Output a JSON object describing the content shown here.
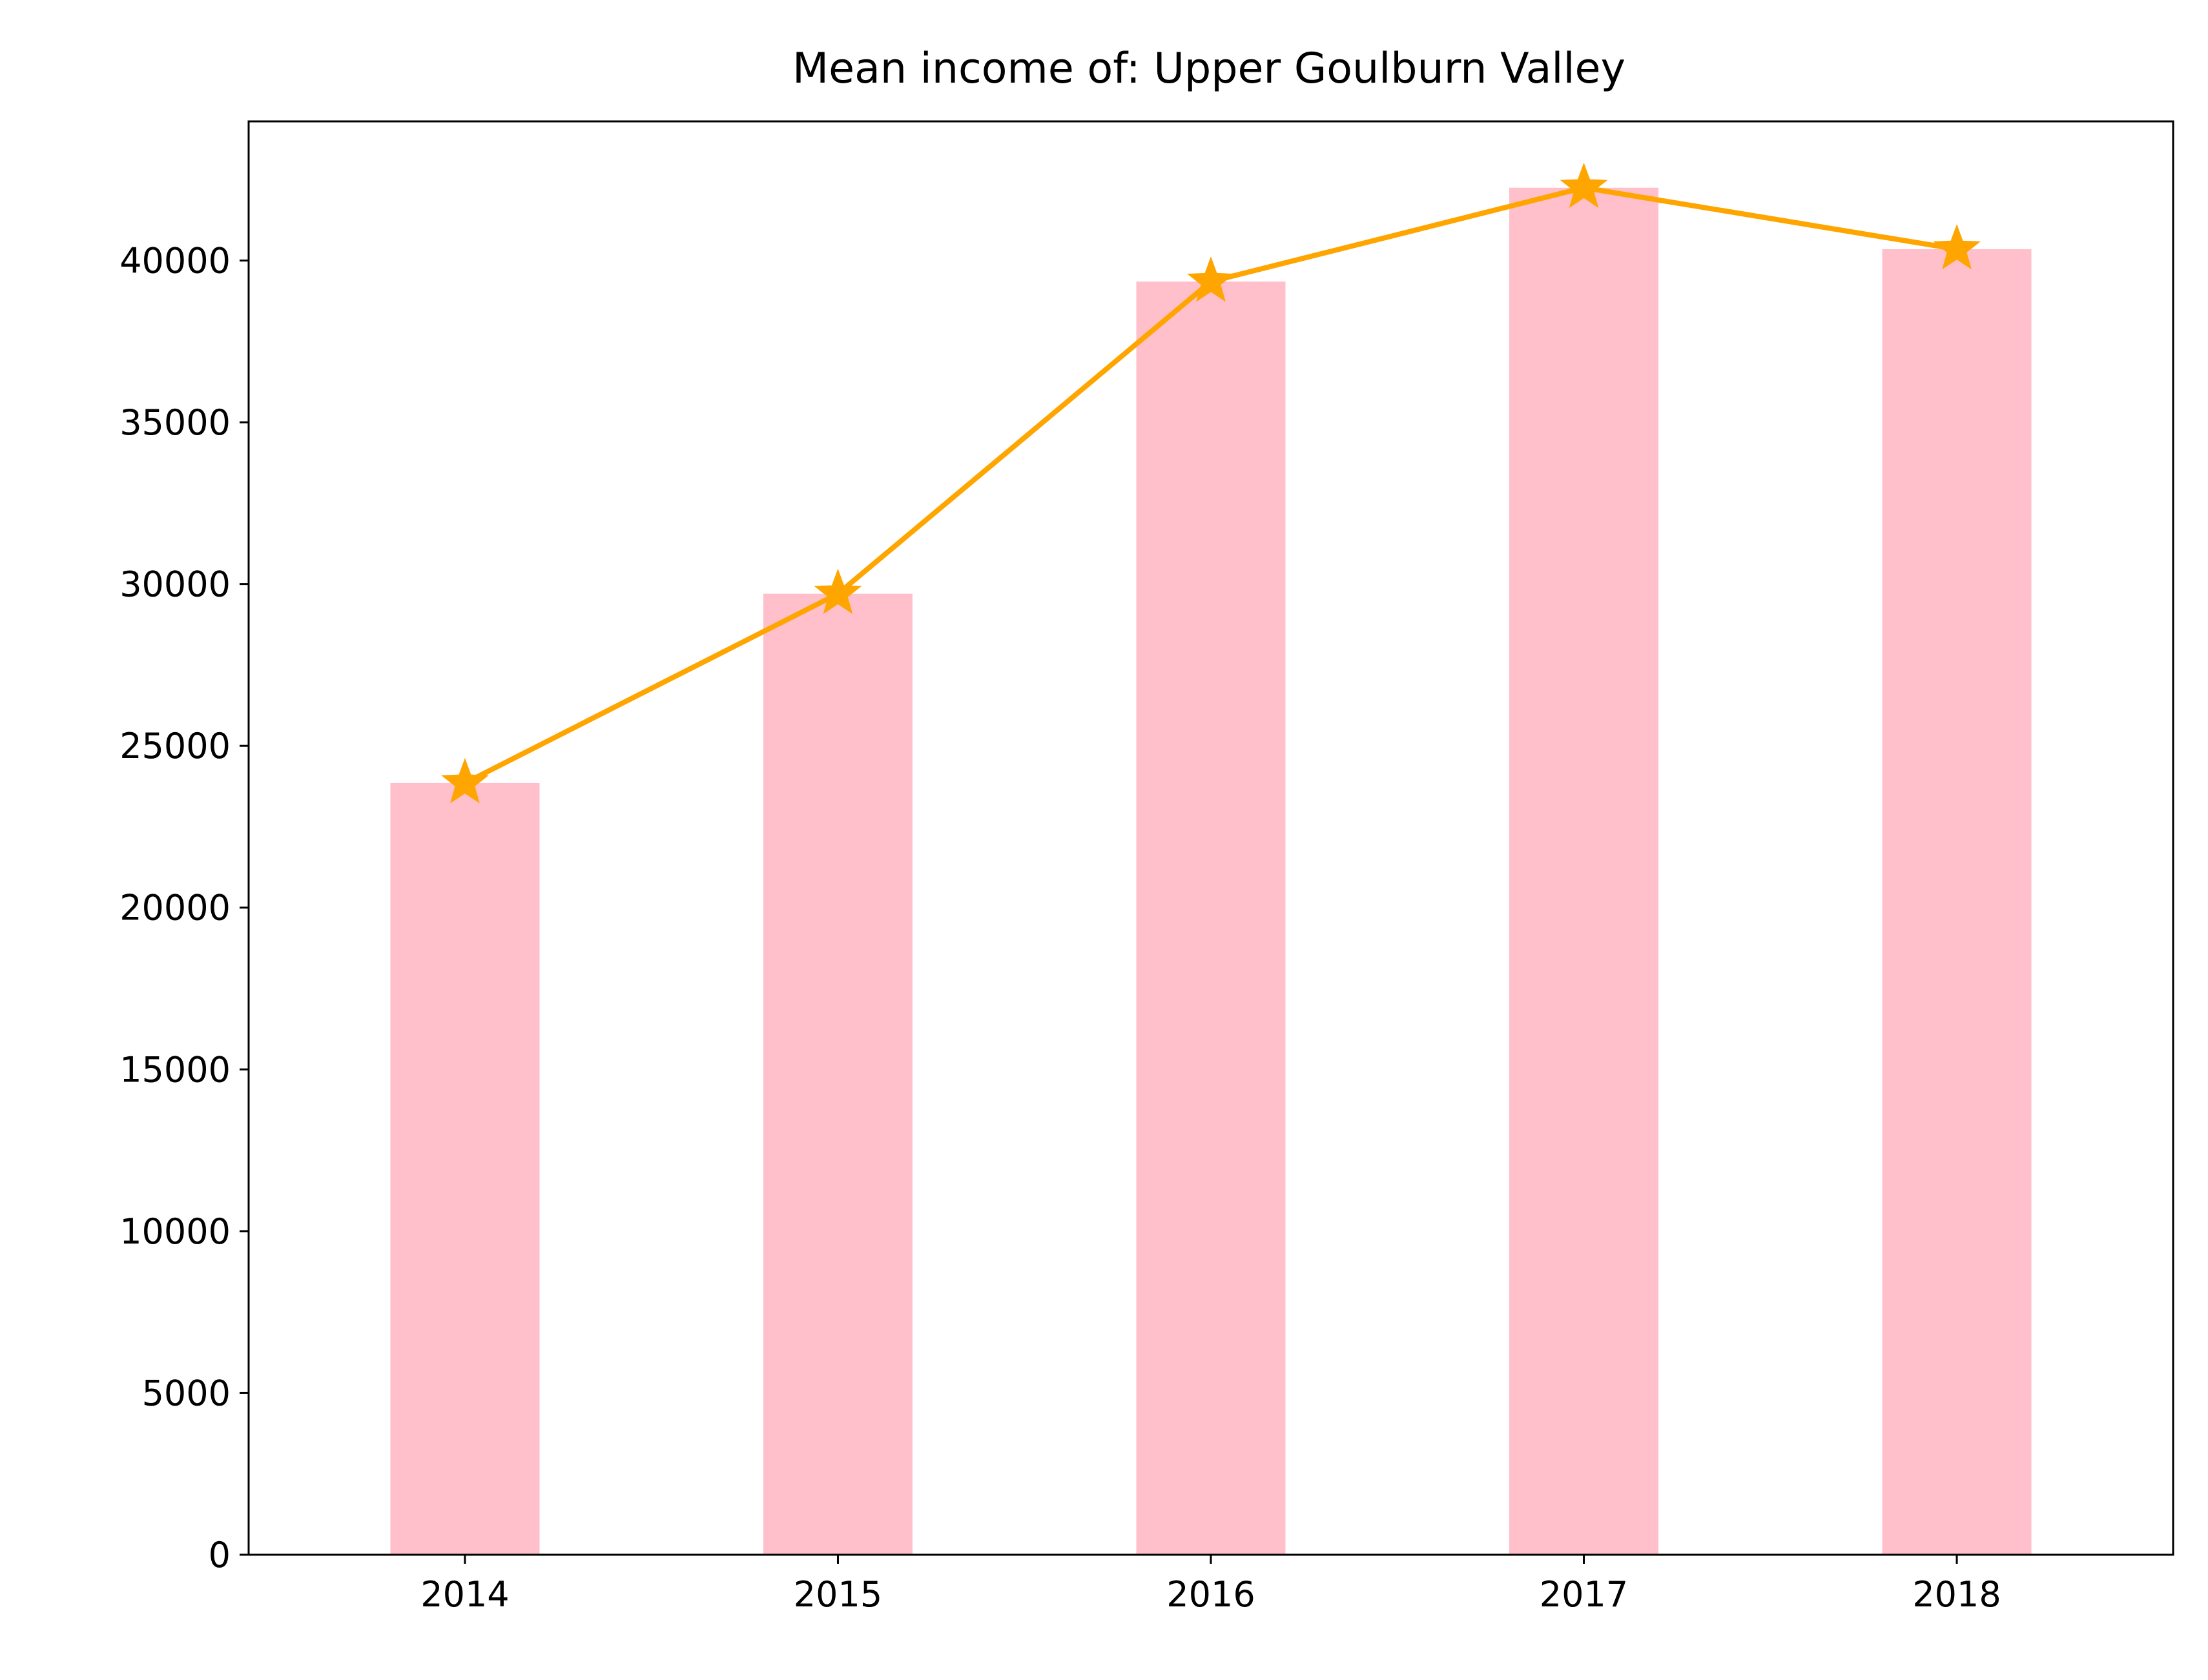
{
  "chart_data": {
    "type": "bar",
    "title": "Mean income of: Upper Goulburn Valley",
    "xlabel": "",
    "ylabel": "",
    "categories": [
      "2014",
      "2015",
      "2016",
      "2017",
      "2018"
    ],
    "values": [
      23850,
      29700,
      39350,
      42250,
      40350
    ],
    "line_overlay": {
      "marker": "star",
      "values": [
        23850,
        29700,
        39350,
        42250,
        40350
      ]
    },
    "ylim": [
      0,
      44300
    ],
    "yticks": [
      0,
      5000,
      10000,
      15000,
      20000,
      25000,
      30000,
      35000,
      40000
    ],
    "grid": false,
    "colors": {
      "bar": "#ffc0cb",
      "line": "#ffa500",
      "axis": "#000000"
    }
  }
}
